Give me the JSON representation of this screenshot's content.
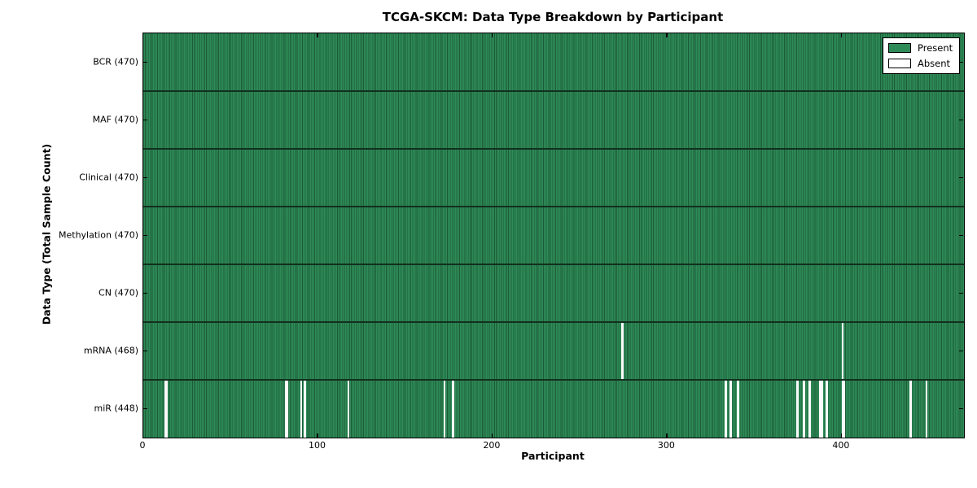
{
  "chart_data": {
    "type": "heatmap",
    "title": "TCGA-SKCM: Data Type Breakdown by Participant",
    "xlabel": "Participant",
    "ylabel": "Data Type (Total Sample Count)",
    "x_ticks": [
      0,
      100,
      200,
      300,
      400
    ],
    "xlim": [
      0,
      470
    ],
    "n_participants": 470,
    "grid": false,
    "legend_position": "upper right",
    "legend": [
      {
        "label": "Present",
        "color": "#2e8b57"
      },
      {
        "label": "Absent",
        "color": "#ffffff"
      }
    ],
    "colors": {
      "present_fill": "#2e8b57",
      "bar_edge": "#1c5c38",
      "absent_fill": "#fafafa",
      "row_divider": "#12301e",
      "axis": "#000000"
    },
    "rows": [
      {
        "label": "BCR",
        "total": 470,
        "absent": []
      },
      {
        "label": "MAF",
        "total": 470,
        "absent": []
      },
      {
        "label": "Clinical",
        "total": 470,
        "absent": []
      },
      {
        "label": "Methylation",
        "total": 470,
        "absent": []
      },
      {
        "label": "CN",
        "total": 470,
        "absent": []
      },
      {
        "label": "mRNA",
        "total": 468,
        "absent": [
          274,
          400
        ]
      },
      {
        "label": "miR",
        "total": 448,
        "absent": [
          12,
          13,
          81,
          82,
          90,
          92,
          117,
          172,
          177,
          333,
          336,
          340,
          374,
          378,
          381,
          387,
          388,
          391,
          400,
          401,
          439,
          448
        ]
      }
    ]
  }
}
